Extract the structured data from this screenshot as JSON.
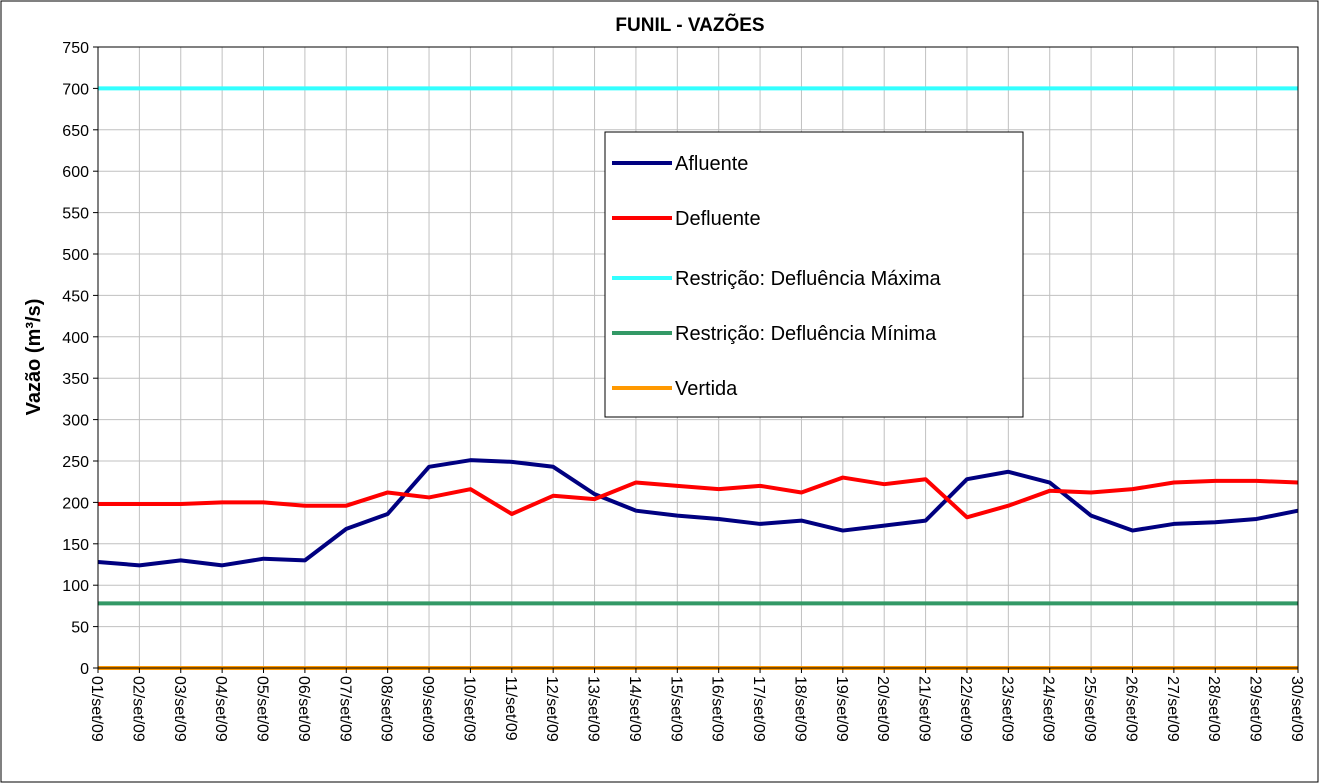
{
  "chart_data": {
    "type": "line",
    "title": "FUNIL - VAZÕES",
    "y_label": "Vazão (m³/s)",
    "categories": [
      "01/set/09",
      "02/set/09",
      "03/set/09",
      "04/set/09",
      "05/set/09",
      "06/set/09",
      "07/set/09",
      "08/set/09",
      "09/set/09",
      "10/set/09",
      "11/set/09",
      "12/set/09",
      "13/set/09",
      "14/set/09",
      "15/set/09",
      "16/set/09",
      "17/set/09",
      "18/set/09",
      "19/set/09",
      "20/set/09",
      "21/set/09",
      "22/set/09",
      "23/set/09",
      "24/set/09",
      "25/set/09",
      "26/set/09",
      "27/set/09",
      "28/set/09",
      "29/set/09",
      "30/set/09"
    ],
    "series": [
      {
        "name": "Afluente",
        "color": "#000080",
        "values": [
          128,
          124,
          130,
          124,
          132,
          130,
          168,
          186,
          243,
          251,
          249,
          243,
          210,
          190,
          184,
          180,
          174,
          178,
          166,
          172,
          178,
          228,
          237,
          224,
          184,
          166,
          174,
          176,
          180,
          190
        ]
      },
      {
        "name": "Defluente",
        "color": "#ff0000",
        "values": [
          198,
          198,
          198,
          200,
          200,
          196,
          196,
          212,
          206,
          216,
          186,
          208,
          204,
          224,
          220,
          216,
          220,
          212,
          230,
          222,
          228,
          182,
          196,
          214,
          212,
          216,
          224,
          226,
          226,
          224
        ]
      },
      {
        "name": "Restrição: Defluência Máxima",
        "color": "#33ffff",
        "values": [
          700,
          700,
          700,
          700,
          700,
          700,
          700,
          700,
          700,
          700,
          700,
          700,
          700,
          700,
          700,
          700,
          700,
          700,
          700,
          700,
          700,
          700,
          700,
          700,
          700,
          700,
          700,
          700,
          700,
          700
        ]
      },
      {
        "name": "Restrição: Defluência Mínima",
        "color": "#339966",
        "values": [
          78,
          78,
          78,
          78,
          78,
          78,
          78,
          78,
          78,
          78,
          78,
          78,
          78,
          78,
          78,
          78,
          78,
          78,
          78,
          78,
          78,
          78,
          78,
          78,
          78,
          78,
          78,
          78,
          78,
          78
        ]
      },
      {
        "name": "Vertida",
        "color": "#ff9900",
        "values": [
          0,
          0,
          0,
          0,
          0,
          0,
          0,
          0,
          0,
          0,
          0,
          0,
          0,
          0,
          0,
          0,
          0,
          0,
          0,
          0,
          0,
          0,
          0,
          0,
          0,
          0,
          0,
          0,
          0,
          0
        ]
      }
    ],
    "ylim": [
      0,
      750
    ],
    "yticks": [
      0,
      50,
      100,
      150,
      200,
      250,
      300,
      350,
      400,
      450,
      500,
      550,
      600,
      650,
      700,
      750
    ],
    "grid": true
  }
}
